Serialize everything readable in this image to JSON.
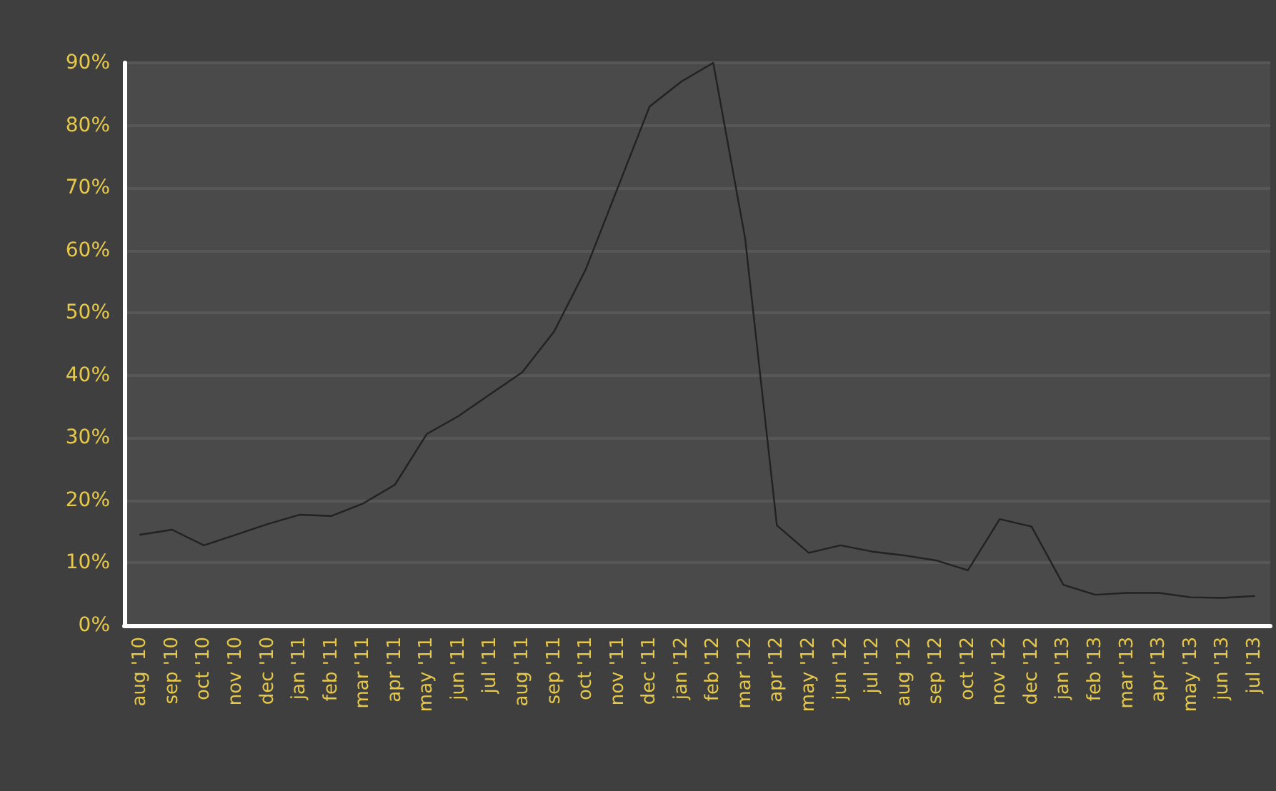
{
  "chart_data": {
    "type": "line",
    "categories": [
      "aug '10",
      "sep '10",
      "oct '10",
      "nov '10",
      "dec '10",
      "jan '11",
      "feb '11",
      "mar '11",
      "apr '11",
      "may '11",
      "jun '11",
      "jul '11",
      "aug '11",
      "sep '11",
      "oct '11",
      "nov '11",
      "dec '11",
      "jan '12",
      "feb '12",
      "mar '12",
      "apr '12",
      "may '12",
      "jun '12",
      "jul '12",
      "aug '12",
      "sep '12",
      "oct '12",
      "nov '12",
      "dec '12",
      "jan '13",
      "feb '13",
      "mar '13",
      "apr '13",
      "may '13",
      "jun '13",
      "jul '13"
    ],
    "series": [
      {
        "color": "#222222",
        "values": [
          14.5,
          15.3,
          12.8,
          14.5,
          16.2,
          17.7,
          17.5,
          19.5,
          22.5,
          30.6,
          33.5,
          37,
          40.5,
          47,
          57,
          70,
          83,
          87,
          90,
          62,
          16,
          11.6,
          12.8,
          11.8,
          11.2,
          10.4,
          8.8,
          17,
          15.8,
          6.5,
          4.9,
          5.2,
          5.2,
          4.5,
          4.4,
          4.7
        ]
      }
    ],
    "ylim": [
      0,
      90
    ],
    "yticks": [
      {
        "value": 0,
        "label": "0%"
      },
      {
        "value": 10,
        "label": "10%"
      },
      {
        "value": 20,
        "label": "20%"
      },
      {
        "value": 30,
        "label": "30%"
      },
      {
        "value": 40,
        "label": "40%"
      },
      {
        "value": 50,
        "label": "50%"
      },
      {
        "value": 60,
        "label": "60%"
      },
      {
        "value": 70,
        "label": "70%"
      },
      {
        "value": 80,
        "label": "80%"
      },
      {
        "value": 90,
        "label": "90%"
      }
    ],
    "grid": "y",
    "marker": "none",
    "line_style": "solid"
  }
}
